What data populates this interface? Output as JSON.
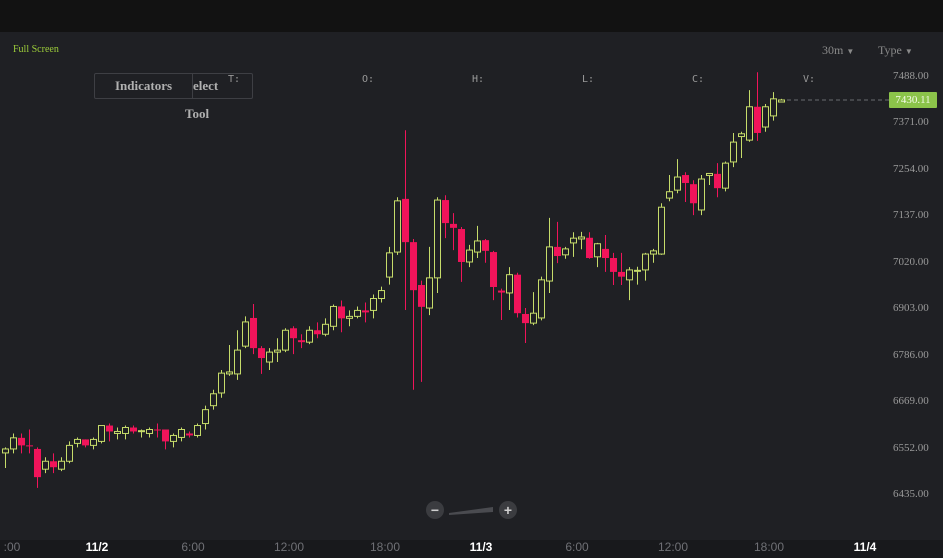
{
  "toolbar": {
    "full_screen": "Full Screen",
    "period": "30m",
    "type": "Type",
    "indicators": "Indicators",
    "select": "elect",
    "tool": "Tool"
  },
  "ohlc_labels": [
    "T:",
    "O:",
    "H:",
    "L:",
    "C:",
    "V:"
  ],
  "zoom": {
    "minus": "−",
    "plus": "+"
  },
  "colors": {
    "up": "#c6dc6a",
    "down": "#f0145a",
    "price_tag": "#8bc34a",
    "accent": "#9ccc3a"
  },
  "chart_data": {
    "type": "candlestick",
    "interval": "30m",
    "last_price": "7430.11",
    "y_ticks": [
      "7488.00",
      "7371.00",
      "7254.00",
      "7137.00",
      "7020.00",
      "6903.00",
      "6786.00",
      "6669.00",
      "6552.00",
      "6435.00"
    ],
    "ylim": [
      6435,
      7488
    ],
    "x_ticks": [
      ":00",
      "11/2",
      "6:00",
      "12:00",
      "18:00",
      "11/3",
      "6:00",
      "12:00",
      "18:00",
      "11/4"
    ],
    "x_tick_is_day": [
      false,
      true,
      false,
      false,
      false,
      true,
      false,
      false,
      false,
      true
    ],
    "grid": false,
    "candles_ohlc": [
      [
        6541,
        6555,
        6503,
        6551
      ],
      [
        6551,
        6590,
        6540,
        6579
      ],
      [
        6579,
        6590,
        6540,
        6560
      ],
      [
        6560,
        6600,
        6540,
        6558
      ],
      [
        6551,
        6555,
        6453,
        6480
      ],
      [
        6500,
        6530,
        6490,
        6520
      ],
      [
        6520,
        6540,
        6490,
        6505
      ],
      [
        6500,
        6530,
        6495,
        6520
      ],
      [
        6520,
        6570,
        6515,
        6560
      ],
      [
        6565,
        6580,
        6555,
        6575
      ],
      [
        6575,
        6575,
        6555,
        6560
      ],
      [
        6560,
        6580,
        6550,
        6575
      ],
      [
        6570,
        6610,
        6565,
        6610
      ],
      [
        6610,
        6615,
        6570,
        6595
      ],
      [
        6590,
        6605,
        6575,
        6595
      ],
      [
        6590,
        6610,
        6575,
        6605
      ],
      [
        6605,
        6610,
        6590,
        6595
      ],
      [
        6595,
        6600,
        6580,
        6597
      ],
      [
        6590,
        6605,
        6580,
        6600
      ],
      [
        6600,
        6615,
        6580,
        6598
      ],
      [
        6600,
        6600,
        6550,
        6570
      ],
      [
        6570,
        6590,
        6555,
        6585
      ],
      [
        6580,
        6605,
        6570,
        6600
      ],
      [
        6590,
        6595,
        6580,
        6585
      ],
      [
        6585,
        6615,
        6580,
        6610
      ],
      [
        6615,
        6660,
        6600,
        6650
      ],
      [
        6660,
        6700,
        6650,
        6690
      ],
      [
        6692,
        6750,
        6680,
        6742
      ],
      [
        6740,
        6813,
        6735,
        6745
      ],
      [
        6740,
        6850,
        6725,
        6800
      ],
      [
        6810,
        6885,
        6805,
        6871
      ],
      [
        6881,
        6916,
        6790,
        6805
      ],
      [
        6805,
        6810,
        6740,
        6780
      ],
      [
        6770,
        6805,
        6750,
        6795
      ],
      [
        6795,
        6830,
        6770,
        6800
      ],
      [
        6800,
        6855,
        6795,
        6850
      ],
      [
        6855,
        6860,
        6790,
        6830
      ],
      [
        6825,
        6840,
        6805,
        6820
      ],
      [
        6820,
        6860,
        6815,
        6850
      ],
      [
        6850,
        6870,
        6830,
        6840
      ],
      [
        6840,
        6880,
        6835,
        6865
      ],
      [
        6860,
        6915,
        6850,
        6910
      ],
      [
        6910,
        6925,
        6845,
        6880
      ],
      [
        6880,
        6900,
        6860,
        6885
      ],
      [
        6885,
        6910,
        6880,
        6900
      ],
      [
        6900,
        6920,
        6870,
        6895
      ],
      [
        6900,
        6940,
        6880,
        6930
      ],
      [
        6930,
        6960,
        6920,
        6950
      ],
      [
        6984,
        7060,
        6965,
        7045
      ],
      [
        7047,
        7185,
        7040,
        7176
      ],
      [
        7181,
        7354,
        6901,
        7072
      ],
      [
        7072,
        7080,
        6700,
        6951
      ],
      [
        6964,
        6975,
        6720,
        6909
      ],
      [
        6906,
        7060,
        6888,
        6982
      ],
      [
        6982,
        7185,
        6944,
        7178
      ],
      [
        7178,
        7190,
        7082,
        7120
      ],
      [
        7118,
        7145,
        7052,
        7108
      ],
      [
        7105,
        7110,
        6972,
        7022
      ],
      [
        7022,
        7065,
        7009,
        7052
      ],
      [
        7047,
        7113,
        7032,
        7075
      ],
      [
        7077,
        7080,
        7020,
        7050
      ],
      [
        7047,
        7050,
        6926,
        6959
      ],
      [
        6950,
        6955,
        6876,
        6945
      ],
      [
        6944,
        7009,
        6901,
        6990
      ],
      [
        6990,
        6995,
        6882,
        6893
      ],
      [
        6891,
        6906,
        6818,
        6868
      ],
      [
        6868,
        6946,
        6863,
        6893
      ],
      [
        6881,
        6985,
        6875,
        6977
      ],
      [
        6974,
        7133,
        6944,
        7060
      ],
      [
        7060,
        7123,
        7019,
        7037
      ],
      [
        7040,
        7060,
        7030,
        7055
      ],
      [
        7070,
        7097,
        7035,
        7082
      ],
      [
        7080,
        7098,
        7054,
        7085
      ],
      [
        7083,
        7097,
        7030,
        7032
      ],
      [
        7035,
        7070,
        7009,
        7068
      ],
      [
        7055,
        7090,
        6997,
        7032
      ],
      [
        7032,
        7045,
        6964,
        6997
      ],
      [
        6997,
        7045,
        6964,
        6985
      ],
      [
        6977,
        7009,
        6926,
        7002
      ],
      [
        7000,
        7010,
        6965,
        7001
      ],
      [
        7002,
        7045,
        6975,
        7042
      ],
      [
        7042,
        7055,
        7020,
        7050
      ],
      [
        7042,
        7170,
        7040,
        7160
      ],
      [
        7183,
        7241,
        7175,
        7199
      ],
      [
        7203,
        7281,
        7195,
        7236
      ],
      [
        7241,
        7248,
        7173,
        7221
      ],
      [
        7218,
        7228,
        7140,
        7170
      ],
      [
        7153,
        7241,
        7140,
        7231
      ],
      [
        7240,
        7245,
        7216,
        7245
      ],
      [
        7244,
        7271,
        7185,
        7208
      ],
      [
        7208,
        7275,
        7200,
        7271
      ],
      [
        7274,
        7347,
        7261,
        7324
      ],
      [
        7338,
        7350,
        7284,
        7345
      ],
      [
        7329,
        7455,
        7325,
        7413
      ],
      [
        7413,
        7500,
        7327,
        7347
      ],
      [
        7362,
        7420,
        7350,
        7413
      ],
      [
        7390,
        7450,
        7378,
        7433
      ],
      [
        7425,
        7433,
        7425,
        7430.11
      ]
    ]
  }
}
